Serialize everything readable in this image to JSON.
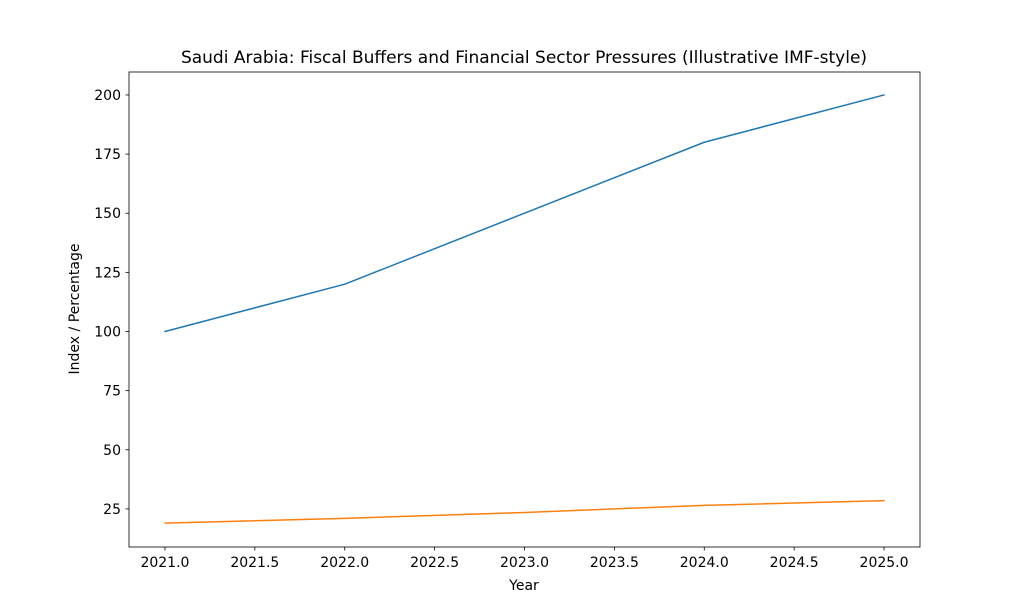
{
  "chart_data": {
    "type": "line",
    "title": "Saudi Arabia: Fiscal Buffers and Financial Sector Pressures (Illustrative IMF-style)",
    "xlabel": "Year",
    "ylabel": "Index / Percentage",
    "x": [
      2021,
      2022,
      2023,
      2024,
      2025
    ],
    "series": [
      {
        "name": "blue-line",
        "color": "#1f77b4",
        "values": [
          100,
          120,
          150,
          180,
          200
        ]
      },
      {
        "name": "orange-line",
        "color": "#ff7f0e",
        "values": [
          19,
          21,
          23.5,
          26.5,
          28.5
        ]
      }
    ],
    "xtick_labels": [
      "2021.0",
      "2021.5",
      "2022.0",
      "2022.5",
      "2023.0",
      "2023.5",
      "2024.0",
      "2024.5",
      "2025.0"
    ],
    "ytick_labels": [
      "25",
      "50",
      "75",
      "100",
      "125",
      "150",
      "175",
      "200"
    ],
    "xlim": [
      2020.8,
      2025.2
    ],
    "ylim": [
      8.9,
      209.7
    ],
    "grid": false,
    "legend": false,
    "line_width": 1.5,
    "colors": {
      "axis": "#000000",
      "text": "#000000",
      "background": "#ffffff"
    }
  }
}
